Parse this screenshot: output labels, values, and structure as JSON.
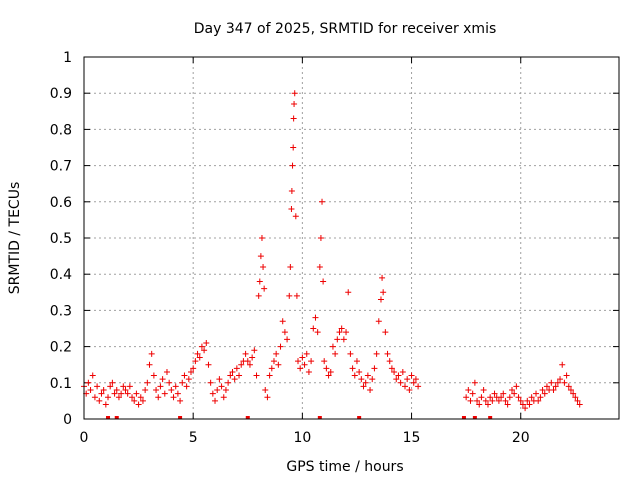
{
  "chart_data": {
    "type": "scatter",
    "title": "Day 347 of 2025, SRMTID for receiver xmis",
    "xlabel": "GPS time / hours",
    "ylabel": "SRMTID / TECUs",
    "xlim": [
      0,
      24.5
    ],
    "ylim": [
      0,
      1
    ],
    "xticks": [
      0,
      5,
      10,
      15,
      20
    ],
    "xtick_labels": [
      "0",
      "5",
      "10",
      "15",
      "20"
    ],
    "yticks": [
      0,
      0.1,
      0.2,
      0.3,
      0.4,
      0.5,
      0.6,
      0.7,
      0.8,
      0.9,
      1
    ],
    "ytick_labels": [
      "0",
      "0.1",
      "0.2",
      "0.3",
      "0.4",
      "0.5",
      "0.6",
      "0.7",
      "0.8",
      "0.9",
      "1"
    ],
    "grid": true,
    "marker": "+",
    "marker_color": "#ee0000",
    "series": [
      {
        "name": "SRMTID",
        "points": [
          [
            0.0,
            0.09
          ],
          [
            0.1,
            0.07
          ],
          [
            0.2,
            0.1
          ],
          [
            0.3,
            0.08
          ],
          [
            0.4,
            0.12
          ],
          [
            0.5,
            0.06
          ],
          [
            0.6,
            0.09
          ],
          [
            0.7,
            0.05
          ],
          [
            0.8,
            0.07
          ],
          [
            0.9,
            0.08
          ],
          [
            1.0,
            0.04
          ],
          [
            1.1,
            0.06
          ],
          [
            1.2,
            0.09
          ],
          [
            1.3,
            0.1
          ],
          [
            1.4,
            0.07
          ],
          [
            1.5,
            0.08
          ],
          [
            1.6,
            0.06
          ],
          [
            1.7,
            0.07
          ],
          [
            1.8,
            0.09
          ],
          [
            1.9,
            0.08
          ],
          [
            2.0,
            0.07
          ],
          [
            2.1,
            0.09
          ],
          [
            2.2,
            0.06
          ],
          [
            2.3,
            0.05
          ],
          [
            2.4,
            0.07
          ],
          [
            2.5,
            0.04
          ],
          [
            2.6,
            0.06
          ],
          [
            2.7,
            0.05
          ],
          [
            2.8,
            0.08
          ],
          [
            2.9,
            0.1
          ],
          [
            3.0,
            0.15
          ],
          [
            3.1,
            0.18
          ],
          [
            3.2,
            0.12
          ],
          [
            3.3,
            0.08
          ],
          [
            3.4,
            0.06
          ],
          [
            3.5,
            0.09
          ],
          [
            3.6,
            0.11
          ],
          [
            3.7,
            0.07
          ],
          [
            3.8,
            0.13
          ],
          [
            3.9,
            0.1
          ],
          [
            4.0,
            0.08
          ],
          [
            4.1,
            0.06
          ],
          [
            4.2,
            0.09
          ],
          [
            4.3,
            0.07
          ],
          [
            4.4,
            0.05
          ],
          [
            4.5,
            0.1
          ],
          [
            4.6,
            0.12
          ],
          [
            4.7,
            0.09
          ],
          [
            4.8,
            0.11
          ],
          [
            4.9,
            0.13
          ],
          [
            5.0,
            0.14
          ],
          [
            5.1,
            0.16
          ],
          [
            5.2,
            0.18
          ],
          [
            5.3,
            0.17
          ],
          [
            5.4,
            0.2
          ],
          [
            5.5,
            0.19
          ],
          [
            5.6,
            0.21
          ],
          [
            5.7,
            0.15
          ],
          [
            5.8,
            0.1
          ],
          [
            5.9,
            0.07
          ],
          [
            6.0,
            0.05
          ],
          [
            6.1,
            0.08
          ],
          [
            6.2,
            0.11
          ],
          [
            6.3,
            0.09
          ],
          [
            6.4,
            0.06
          ],
          [
            6.5,
            0.08
          ],
          [
            6.6,
            0.1
          ],
          [
            6.7,
            0.12
          ],
          [
            6.8,
            0.13
          ],
          [
            6.9,
            0.11
          ],
          [
            7.0,
            0.14
          ],
          [
            7.1,
            0.12
          ],
          [
            7.2,
            0.15
          ],
          [
            7.3,
            0.16
          ],
          [
            7.4,
            0.18
          ],
          [
            7.5,
            0.16
          ],
          [
            7.6,
            0.15
          ],
          [
            7.7,
            0.17
          ],
          [
            7.8,
            0.19
          ],
          [
            7.9,
            0.12
          ],
          [
            8.0,
            0.34
          ],
          [
            8.05,
            0.38
          ],
          [
            8.1,
            0.45
          ],
          [
            8.15,
            0.5
          ],
          [
            8.2,
            0.42
          ],
          [
            8.25,
            0.36
          ],
          [
            8.3,
            0.08
          ],
          [
            8.4,
            0.06
          ],
          [
            8.5,
            0.12
          ],
          [
            8.6,
            0.14
          ],
          [
            8.7,
            0.16
          ],
          [
            8.8,
            0.18
          ],
          [
            8.9,
            0.15
          ],
          [
            9.0,
            0.2
          ],
          [
            9.1,
            0.27
          ],
          [
            9.2,
            0.24
          ],
          [
            9.3,
            0.22
          ],
          [
            9.4,
            0.34
          ],
          [
            9.45,
            0.42
          ],
          [
            9.5,
            0.58
          ],
          [
            9.52,
            0.63
          ],
          [
            9.55,
            0.7
          ],
          [
            9.58,
            0.75
          ],
          [
            9.6,
            0.83
          ],
          [
            9.62,
            0.87
          ],
          [
            9.65,
            0.9
          ],
          [
            9.7,
            0.56
          ],
          [
            9.75,
            0.34
          ],
          [
            9.8,
            0.16
          ],
          [
            9.9,
            0.14
          ],
          [
            10.0,
            0.17
          ],
          [
            10.1,
            0.15
          ],
          [
            10.2,
            0.18
          ],
          [
            10.3,
            0.13
          ],
          [
            10.4,
            0.16
          ],
          [
            10.5,
            0.25
          ],
          [
            10.6,
            0.28
          ],
          [
            10.7,
            0.24
          ],
          [
            10.8,
            0.42
          ],
          [
            10.85,
            0.5
          ],
          [
            10.9,
            0.6
          ],
          [
            10.95,
            0.38
          ],
          [
            11.0,
            0.16
          ],
          [
            11.1,
            0.14
          ],
          [
            11.2,
            0.12
          ],
          [
            11.3,
            0.13
          ],
          [
            11.4,
            0.2
          ],
          [
            11.5,
            0.18
          ],
          [
            11.6,
            0.22
          ],
          [
            11.7,
            0.24
          ],
          [
            11.8,
            0.25
          ],
          [
            11.9,
            0.22
          ],
          [
            12.0,
            0.24
          ],
          [
            12.1,
            0.35
          ],
          [
            12.2,
            0.18
          ],
          [
            12.3,
            0.14
          ],
          [
            12.4,
            0.12
          ],
          [
            12.5,
            0.16
          ],
          [
            12.6,
            0.13
          ],
          [
            12.7,
            0.11
          ],
          [
            12.8,
            0.09
          ],
          [
            12.9,
            0.1
          ],
          [
            13.0,
            0.12
          ],
          [
            13.1,
            0.08
          ],
          [
            13.2,
            0.11
          ],
          [
            13.3,
            0.14
          ],
          [
            13.4,
            0.18
          ],
          [
            13.5,
            0.27
          ],
          [
            13.6,
            0.33
          ],
          [
            13.65,
            0.39
          ],
          [
            13.7,
            0.35
          ],
          [
            13.8,
            0.24
          ],
          [
            13.9,
            0.18
          ],
          [
            14.0,
            0.16
          ],
          [
            14.1,
            0.14
          ],
          [
            14.2,
            0.13
          ],
          [
            14.3,
            0.11
          ],
          [
            14.4,
            0.12
          ],
          [
            14.5,
            0.1
          ],
          [
            14.6,
            0.13
          ],
          [
            14.7,
            0.09
          ],
          [
            14.8,
            0.11
          ],
          [
            14.9,
            0.08
          ],
          [
            15.0,
            0.12
          ],
          [
            15.1,
            0.1
          ],
          [
            15.2,
            0.11
          ],
          [
            15.3,
            0.09
          ],
          [
            17.5,
            0.06
          ],
          [
            17.6,
            0.08
          ],
          [
            17.7,
            0.05
          ],
          [
            17.8,
            0.07
          ],
          [
            17.9,
            0.1
          ],
          [
            18.0,
            0.05
          ],
          [
            18.1,
            0.04
          ],
          [
            18.2,
            0.06
          ],
          [
            18.3,
            0.08
          ],
          [
            18.4,
            0.05
          ],
          [
            18.5,
            0.04
          ],
          [
            18.6,
            0.06
          ],
          [
            18.7,
            0.05
          ],
          [
            18.8,
            0.07
          ],
          [
            18.9,
            0.06
          ],
          [
            19.0,
            0.05
          ],
          [
            19.1,
            0.06
          ],
          [
            19.2,
            0.07
          ],
          [
            19.3,
            0.05
          ],
          [
            19.4,
            0.04
          ],
          [
            19.5,
            0.06
          ],
          [
            19.6,
            0.08
          ],
          [
            19.7,
            0.07
          ],
          [
            19.8,
            0.09
          ],
          [
            19.9,
            0.06
          ],
          [
            20.0,
            0.05
          ],
          [
            20.1,
            0.04
          ],
          [
            20.2,
            0.03
          ],
          [
            20.3,
            0.05
          ],
          [
            20.4,
            0.04
          ],
          [
            20.5,
            0.06
          ],
          [
            20.6,
            0.05
          ],
          [
            20.7,
            0.07
          ],
          [
            20.8,
            0.05
          ],
          [
            20.9,
            0.06
          ],
          [
            21.0,
            0.08
          ],
          [
            21.1,
            0.07
          ],
          [
            21.2,
            0.09
          ],
          [
            21.3,
            0.08
          ],
          [
            21.4,
            0.1
          ],
          [
            21.5,
            0.08
          ],
          [
            21.6,
            0.09
          ],
          [
            21.7,
            0.1
          ],
          [
            21.8,
            0.11
          ],
          [
            21.9,
            0.15
          ],
          [
            22.0,
            0.1
          ],
          [
            22.1,
            0.12
          ],
          [
            22.2,
            0.09
          ],
          [
            22.3,
            0.08
          ],
          [
            22.4,
            0.07
          ],
          [
            22.5,
            0.06
          ],
          [
            22.6,
            0.05
          ],
          [
            22.7,
            0.04
          ]
        ]
      }
    ],
    "zero_markers": [
      1.1,
      1.5,
      4.4,
      7.5,
      10.8,
      12.6,
      17.4,
      17.9,
      18.6
    ]
  }
}
